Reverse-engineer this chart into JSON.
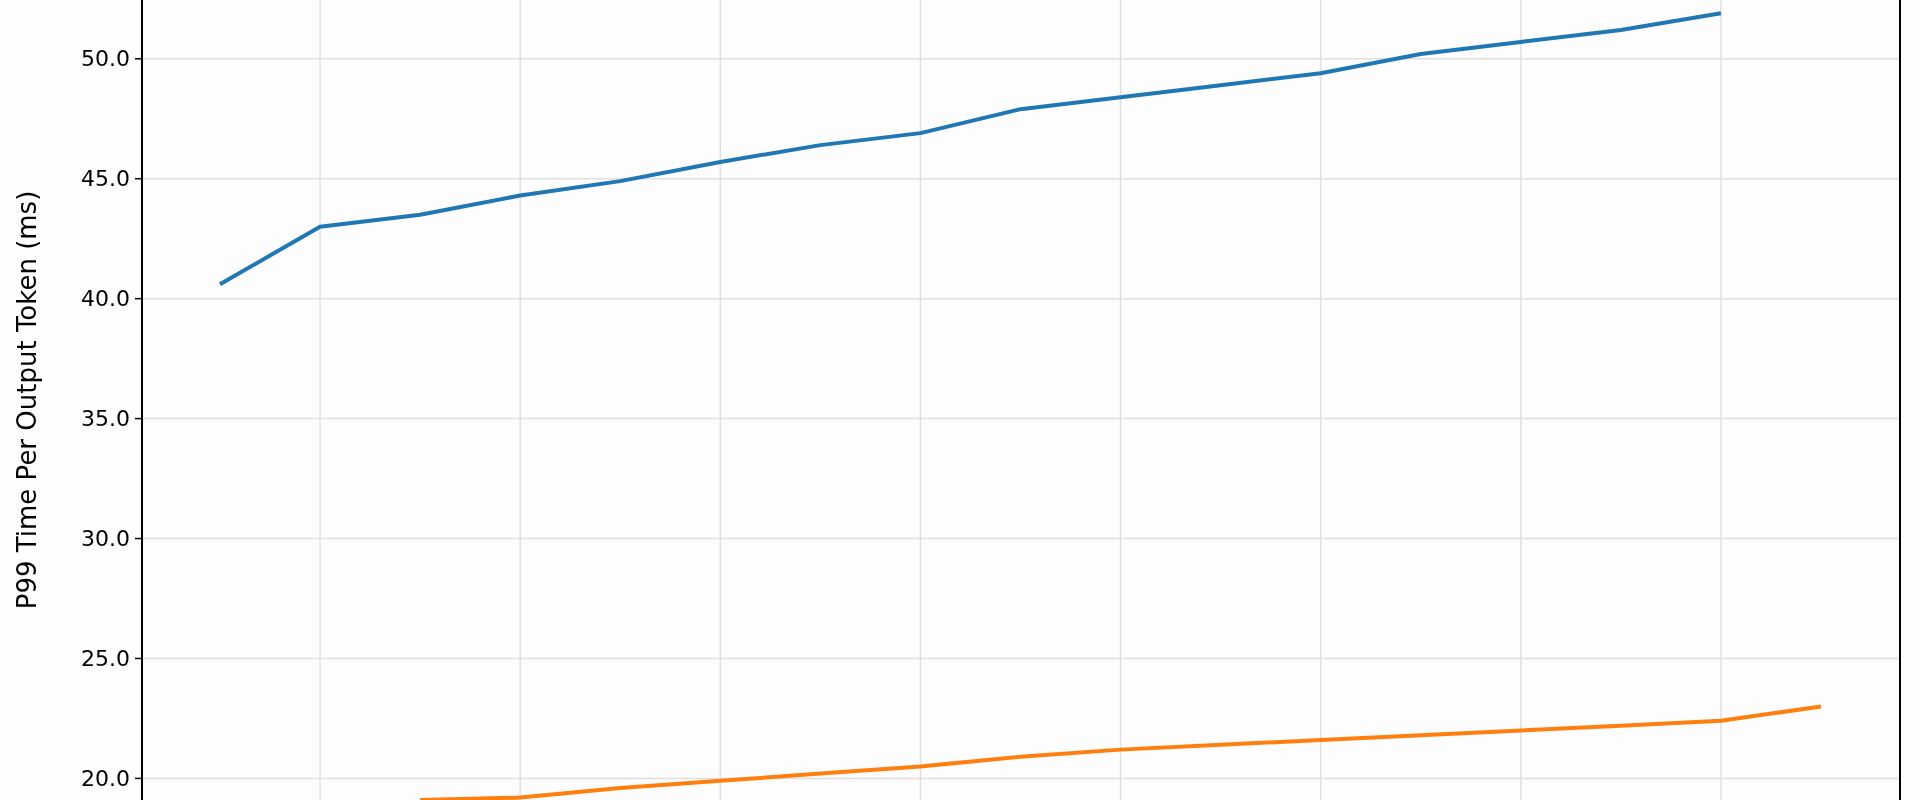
{
  "chart_data": {
    "type": "line",
    "ylabel": "P99 Time Per Output Token (ms)",
    "categories": [
      null,
      null,
      null,
      null,
      null,
      null,
      null,
      null,
      null,
      null,
      null,
      null,
      null,
      null,
      null,
      null,
      null
    ],
    "series": [
      {
        "color": "#1f77b4",
        "values": [
          40.6,
          43.0,
          43.5,
          44.3,
          44.9,
          45.7,
          46.4,
          46.9,
          47.9,
          48.4,
          48.9,
          49.4,
          50.2,
          50.7,
          51.2,
          51.9,
          null
        ]
      },
      {
        "color": "#ff7f0e",
        "values": [
          null,
          null,
          19.1,
          19.2,
          19.6,
          19.9,
          20.2,
          20.5,
          20.9,
          21.2,
          21.4,
          21.6,
          21.8,
          22.0,
          22.2,
          22.4,
          23.0
        ]
      }
    ],
    "ylim": [
      19.1,
      52.45
    ],
    "yticks": [
      {
        "value": 20,
        "label": "20.0"
      },
      {
        "value": 25,
        "label": "25.0"
      },
      {
        "value": 30,
        "label": "30.0"
      },
      {
        "value": 35,
        "label": "35.0"
      },
      {
        "value": 40,
        "label": "40.0"
      },
      {
        "value": 45,
        "label": "45.0"
      },
      {
        "value": 50,
        "label": "50.0"
      }
    ],
    "grid": true,
    "tick_labels": "y",
    "line_style": "solid",
    "marker": "none"
  }
}
